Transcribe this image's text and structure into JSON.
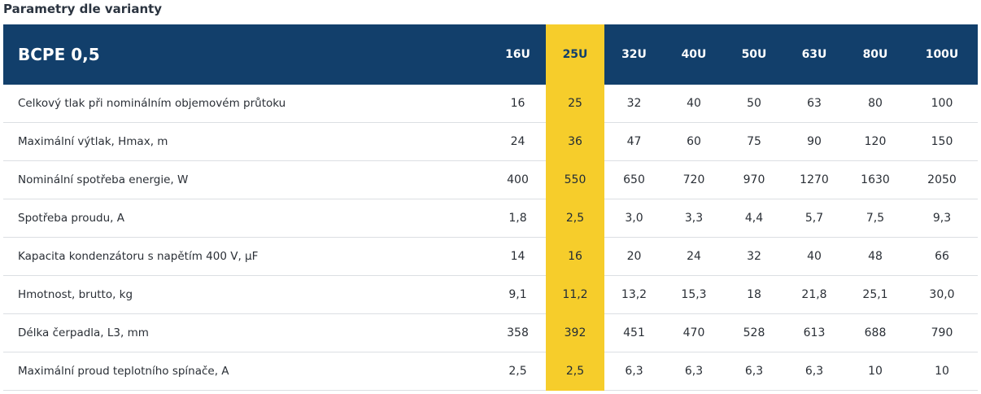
{
  "section_title": "Parametry dle varianty",
  "table": {
    "model": "BCPE 0,5",
    "variants": [
      "16U",
      "25U",
      "32U",
      "40U",
      "50U",
      "63U",
      "80U",
      "100U"
    ],
    "highlight_color": "#f6cd2b",
    "header_color": "#123f6b",
    "rows": [
      {
        "label": "Celkový tlak při nominálním objemovém průtoku",
        "values": [
          "16",
          "25",
          "32",
          "40",
          "50",
          "63",
          "80",
          "100"
        ]
      },
      {
        "label": "Maximální výtlak, Hmax, m",
        "values": [
          "24",
          "36",
          "47",
          "60",
          "75",
          "90",
          "120",
          "150"
        ]
      },
      {
        "label": "Nominální spotřeba energie, W",
        "values": [
          "400",
          "550",
          "650",
          "720",
          "970",
          "1270",
          "1630",
          "2050"
        ]
      },
      {
        "label": "Spotřeba proudu, A",
        "values": [
          "1,8",
          "2,5",
          "3,0",
          "3,3",
          "4,4",
          "5,7",
          "7,5",
          "9,3"
        ]
      },
      {
        "label": "Kapacita kondenzátoru s napětím 400 V, μF",
        "values": [
          "14",
          "16",
          "20",
          "24",
          "32",
          "40",
          "48",
          "66"
        ]
      },
      {
        "label": "Hmotnost, brutto, kg",
        "values": [
          "9,1",
          "11,2",
          "13,2",
          "15,3",
          "18",
          "21,8",
          "25,1",
          "30,0"
        ]
      },
      {
        "label": "Délka čerpadla, L3, mm",
        "values": [
          "358",
          "392",
          "451",
          "470",
          "528",
          "613",
          "688",
          "790"
        ]
      },
      {
        "label": "Maximální proud teplotního spínače, A",
        "values": [
          "2,5",
          "2,5",
          "6,3",
          "6,3",
          "6,3",
          "6,3",
          "10",
          "10"
        ]
      }
    ]
  }
}
